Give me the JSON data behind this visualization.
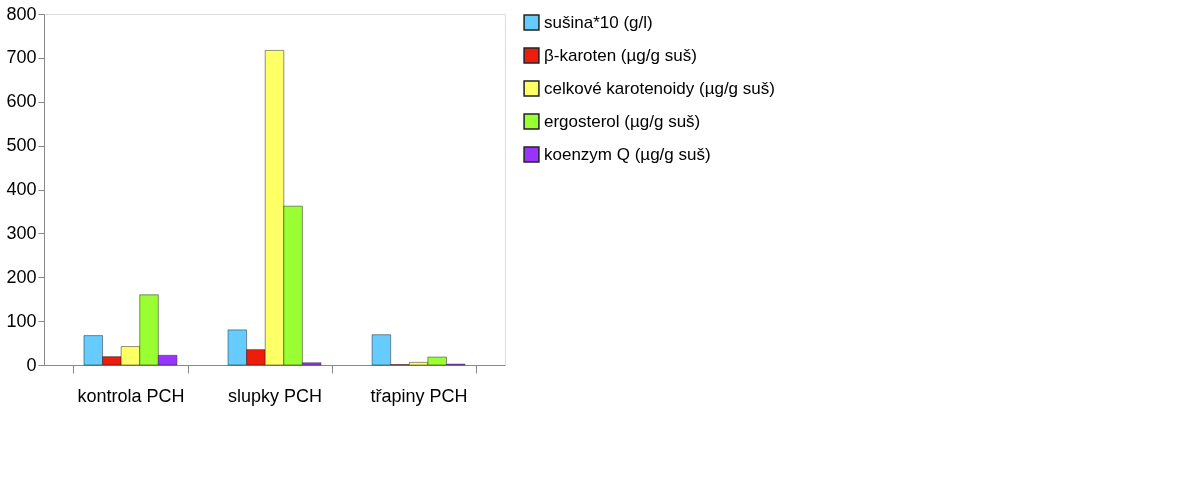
{
  "chart_data": {
    "type": "bar",
    "categories": [
      "kontrola PCH",
      "slupky PCH",
      "třapiny PCH"
    ],
    "series": [
      {
        "name": "sušina*10 (g/l)",
        "color": "#66ccff",
        "values": [
          67,
          80,
          69
        ]
      },
      {
        "name": "β-karoten (µg/g suš)",
        "color": "#ee1c0a",
        "values": [
          19,
          35,
          1
        ]
      },
      {
        "name": "celkové karotenoidy (µg/g suš)",
        "color": "#ffff66",
        "values": [
          42,
          717,
          6
        ]
      },
      {
        "name": "ergosterol (µg/g suš)",
        "color": "#99ff33",
        "values": [
          160,
          362,
          18
        ]
      },
      {
        "name": "koenzym Q (µg/g suš)",
        "color": "#9933ff",
        "values": [
          22,
          5,
          2
        ]
      }
    ],
    "ylim": [
      0,
      800
    ],
    "yticks": [
      0,
      100,
      200,
      300,
      400,
      500,
      600,
      700,
      800
    ],
    "grid": false,
    "legend": "top right"
  }
}
